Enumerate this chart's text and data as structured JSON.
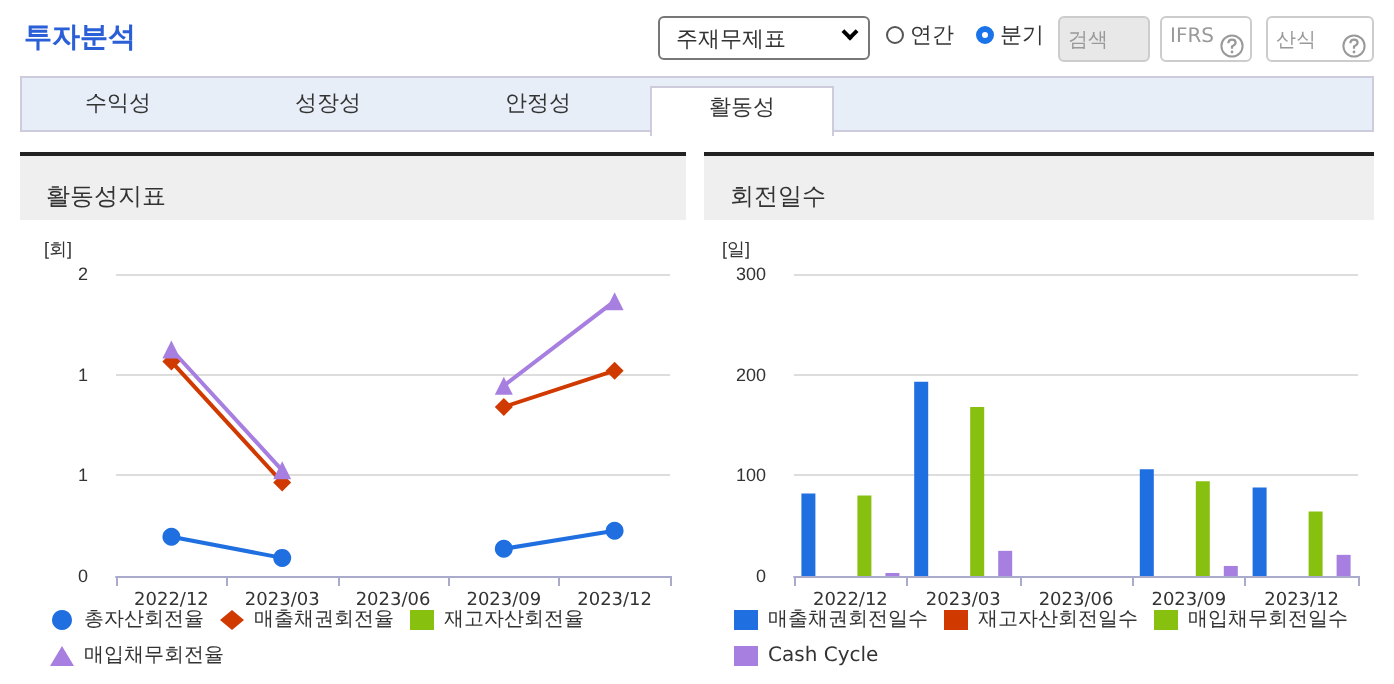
{
  "chart_data": [
    {
      "type": "line",
      "title": "활동성지표",
      "ylabel": "[회]",
      "annotations": [
        "투자분석",
        "주재무제표",
        "연간",
        "분기",
        "검색",
        "IFRS",
        "산식",
        "수익성",
        "성장성",
        "안정성",
        "활동성"
      ],
      "categories": [
        "2022/12",
        "2023/03",
        "2023/06",
        "2023/09",
        "2023/12"
      ],
      "series": [
        {
          "name": "총자산회전율",
          "color": "#1f6fe0",
          "marker": "circle",
          "values": [
            0.26,
            0.12,
            null,
            0.18,
            0.3
          ]
        },
        {
          "name": "매출채권회전율",
          "color": "#d03a00",
          "marker": "diamond",
          "values": [
            1.42,
            0.62,
            null,
            1.12,
            1.36
          ]
        },
        {
          "name": "재고자산회전율",
          "color": "#88c010",
          "marker": "square",
          "values": [
            null,
            null,
            null,
            null,
            null
          ]
        },
        {
          "name": "매입채무회전율",
          "color": "#a77fe0",
          "marker": "triangle",
          "values": [
            1.5,
            0.7,
            null,
            1.26,
            1.82
          ]
        }
      ],
      "ylim": [
        0,
        2
      ],
      "yticks": [
        0,
        {
          "value": 0.667,
          "label": "1"
        },
        {
          "value": 1.333,
          "label": "1"
        },
        2
      ],
      "grid": "y",
      "legend": "bottom"
    },
    {
      "type": "bar",
      "title": "회전일수",
      "ylabel": "[일]",
      "categories": [
        "2022/12",
        "2023/03",
        "2023/06",
        "2023/09",
        "2023/12"
      ],
      "series": [
        {
          "name": "매출채권회전일수",
          "color": "#1f6fe0",
          "values": [
            82,
            193,
            null,
            106,
            88
          ]
        },
        {
          "name": "재고자산회전일수",
          "color": "#d03a00",
          "values": [
            null,
            null,
            null,
            null,
            null
          ]
        },
        {
          "name": "매입채무회전일수",
          "color": "#88c010",
          "values": [
            80,
            168,
            null,
            94,
            64
          ]
        },
        {
          "name": "Cash Cycle",
          "color": "#a77fe0",
          "values": [
            3,
            25,
            null,
            10,
            21
          ]
        }
      ],
      "ylim": [
        0,
        300
      ],
      "yticks": [
        0,
        100,
        200,
        300
      ],
      "grid": "y",
      "legend": "bottom"
    }
  ]
}
